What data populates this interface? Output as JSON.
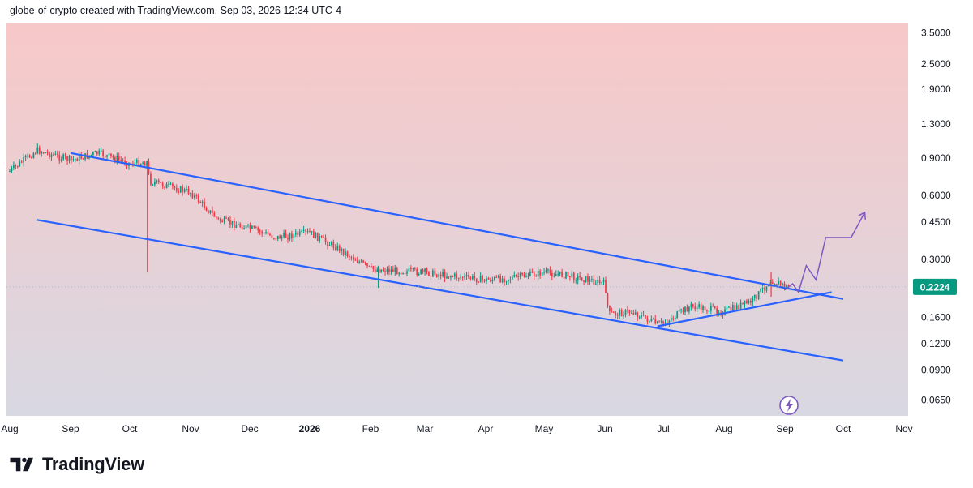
{
  "header": {
    "caption": "globe-of-crypto created with TradingView.com, Sep 03, 2026 12:34 UTC-4"
  },
  "footer": {
    "brand": "TradingView",
    "logo_icon": "tradingview-logo-icon"
  },
  "colors": {
    "bg_top": "#f8c8c8",
    "bg_bottom": "#d8d8e2",
    "candle_up": "#089981",
    "candle_down": "#f23645",
    "trendline": "#2962ff",
    "projection": "#7e57c2",
    "price_badge": "#089981"
  },
  "chart_data": {
    "type": "candlestick",
    "scale": "log",
    "grid": false,
    "y_ticks": [
      "3.5000",
      "2.5000",
      "1.9000",
      "1.3000",
      "0.9000",
      "0.6000",
      "0.4500",
      "0.3000",
      "0.1600",
      "0.1200",
      "0.0900",
      "0.0650"
    ],
    "x_ticks": [
      "Aug",
      "Sep",
      "Oct",
      "Nov",
      "Dec",
      "2026",
      "Feb",
      "Mar",
      "Apr",
      "May",
      "Jun",
      "Jul",
      "Aug",
      "Sep",
      "Oct",
      "Nov"
    ],
    "last_price": "0.2224",
    "price_series": {
      "x": [
        "2025-08-01",
        "2025-08-15",
        "2025-09-01",
        "2025-09-15",
        "2025-10-01",
        "2025-10-10",
        "2025-10-11",
        "2025-11-01",
        "2025-11-15",
        "2025-12-01",
        "2025-12-15",
        "2026-01-01",
        "2026-01-15",
        "2026-02-01",
        "2026-02-15",
        "2026-03-01",
        "2026-03-15",
        "2026-04-01",
        "2026-04-15",
        "2026-05-01",
        "2026-05-15",
        "2026-06-01",
        "2026-06-03",
        "2026-06-15",
        "2026-06-28",
        "2026-07-01",
        "2026-07-15",
        "2026-08-01",
        "2026-08-15",
        "2026-08-25",
        "2026-09-03"
      ],
      "y": [
        0.78,
        0.98,
        0.88,
        0.95,
        0.85,
        0.86,
        0.7,
        0.62,
        0.46,
        0.42,
        0.38,
        0.4,
        0.34,
        0.27,
        0.265,
        0.26,
        0.25,
        0.24,
        0.245,
        0.26,
        0.25,
        0.23,
        0.165,
        0.17,
        0.148,
        0.15,
        0.18,
        0.17,
        0.19,
        0.24,
        0.22
      ]
    },
    "annotations": {
      "channel_upper": {
        "from": [
          "2025-09-01",
          0.95
        ],
        "to": [
          "2026-10-01",
          0.195
        ]
      },
      "channel_lower": {
        "from": [
          "2025-08-15",
          0.46
        ],
        "to": [
          "2026-10-01",
          0.1
        ]
      },
      "support_line": {
        "from": [
          "2026-06-28",
          0.145
        ],
        "to": [
          "2026-09-25",
          0.21
        ]
      },
      "projection_path": {
        "x": [
          "2026-09-01",
          "2026-09-05",
          "2026-09-08",
          "2026-09-12",
          "2026-09-17",
          "2026-09-22",
          "2026-09-28",
          "2026-10-05",
          "2026-10-12"
        ],
        "y": [
          0.215,
          0.23,
          0.21,
          0.28,
          0.24,
          0.38,
          0.38,
          0.38,
          0.5
        ]
      }
    }
  }
}
